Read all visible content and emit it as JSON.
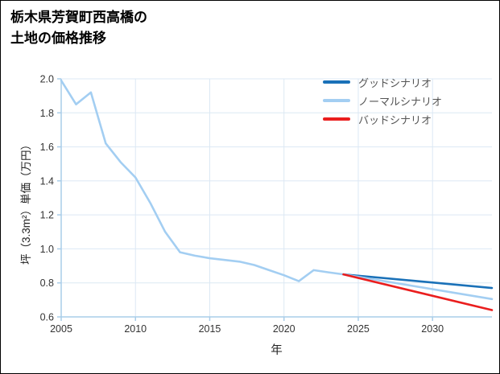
{
  "page": {
    "title_line1": "栃木県芳賀町西高橋の",
    "title_line2": "土地の価格推移"
  },
  "colors": {
    "axis": "#a9cde9",
    "grid": "#dce8f4",
    "tick_text": "#333333",
    "label_text": "#222222",
    "legend_text": "#555555",
    "background": "#ffffff",
    "border": "#000000"
  },
  "chart_data": {
    "type": "line",
    "title": "栃木県芳賀町西高橋の土地の価格推移",
    "xlabel": "年",
    "ylabel": "坪（3.3m²）単価（万円）",
    "xlim": [
      2005,
      2034
    ],
    "ylim": [
      0.6,
      2.0
    ],
    "xticks": [
      2005,
      2010,
      2015,
      2020,
      2025,
      2030
    ],
    "xtick_labels": [
      "2005",
      "2010",
      "2015",
      "2020",
      "2025",
      "2030"
    ],
    "yticks": [
      0.6,
      0.8,
      1.0,
      1.2,
      1.4,
      1.6,
      1.8,
      2.0
    ],
    "ytick_labels": [
      "0.6",
      "0.8",
      "1.0",
      "1.2",
      "1.4",
      "1.6",
      "1.8",
      "2.0"
    ],
    "grid": true,
    "legend_position": "top-right",
    "series": [
      {
        "id": "historical",
        "name": "",
        "color": "#a3cef2",
        "in_legend": false,
        "x": [
          2005,
          2006,
          2007,
          2008,
          2009,
          2010,
          2011,
          2012,
          2013,
          2014,
          2015,
          2016,
          2017,
          2018,
          2019,
          2020,
          2021,
          2022,
          2023,
          2024
        ],
        "y": [
          1.99,
          1.85,
          1.92,
          1.62,
          1.51,
          1.42,
          1.27,
          1.1,
          0.98,
          0.96,
          0.945,
          0.935,
          0.925,
          0.905,
          0.875,
          0.845,
          0.81,
          0.875,
          0.862,
          0.85
        ]
      },
      {
        "id": "good",
        "name": "グッドシナリオ",
        "color": "#1a71b8",
        "in_legend": true,
        "x": [
          2024,
          2034
        ],
        "y": [
          0.85,
          0.77
        ]
      },
      {
        "id": "normal",
        "name": "ノーマルシナリオ",
        "color": "#a3cef2",
        "in_legend": true,
        "x": [
          2024,
          2034
        ],
        "y": [
          0.85,
          0.705
        ]
      },
      {
        "id": "bad",
        "name": "バッドシナリオ",
        "color": "#ea1e1e",
        "in_legend": true,
        "x": [
          2024,
          2034
        ],
        "y": [
          0.85,
          0.64
        ]
      }
    ]
  }
}
